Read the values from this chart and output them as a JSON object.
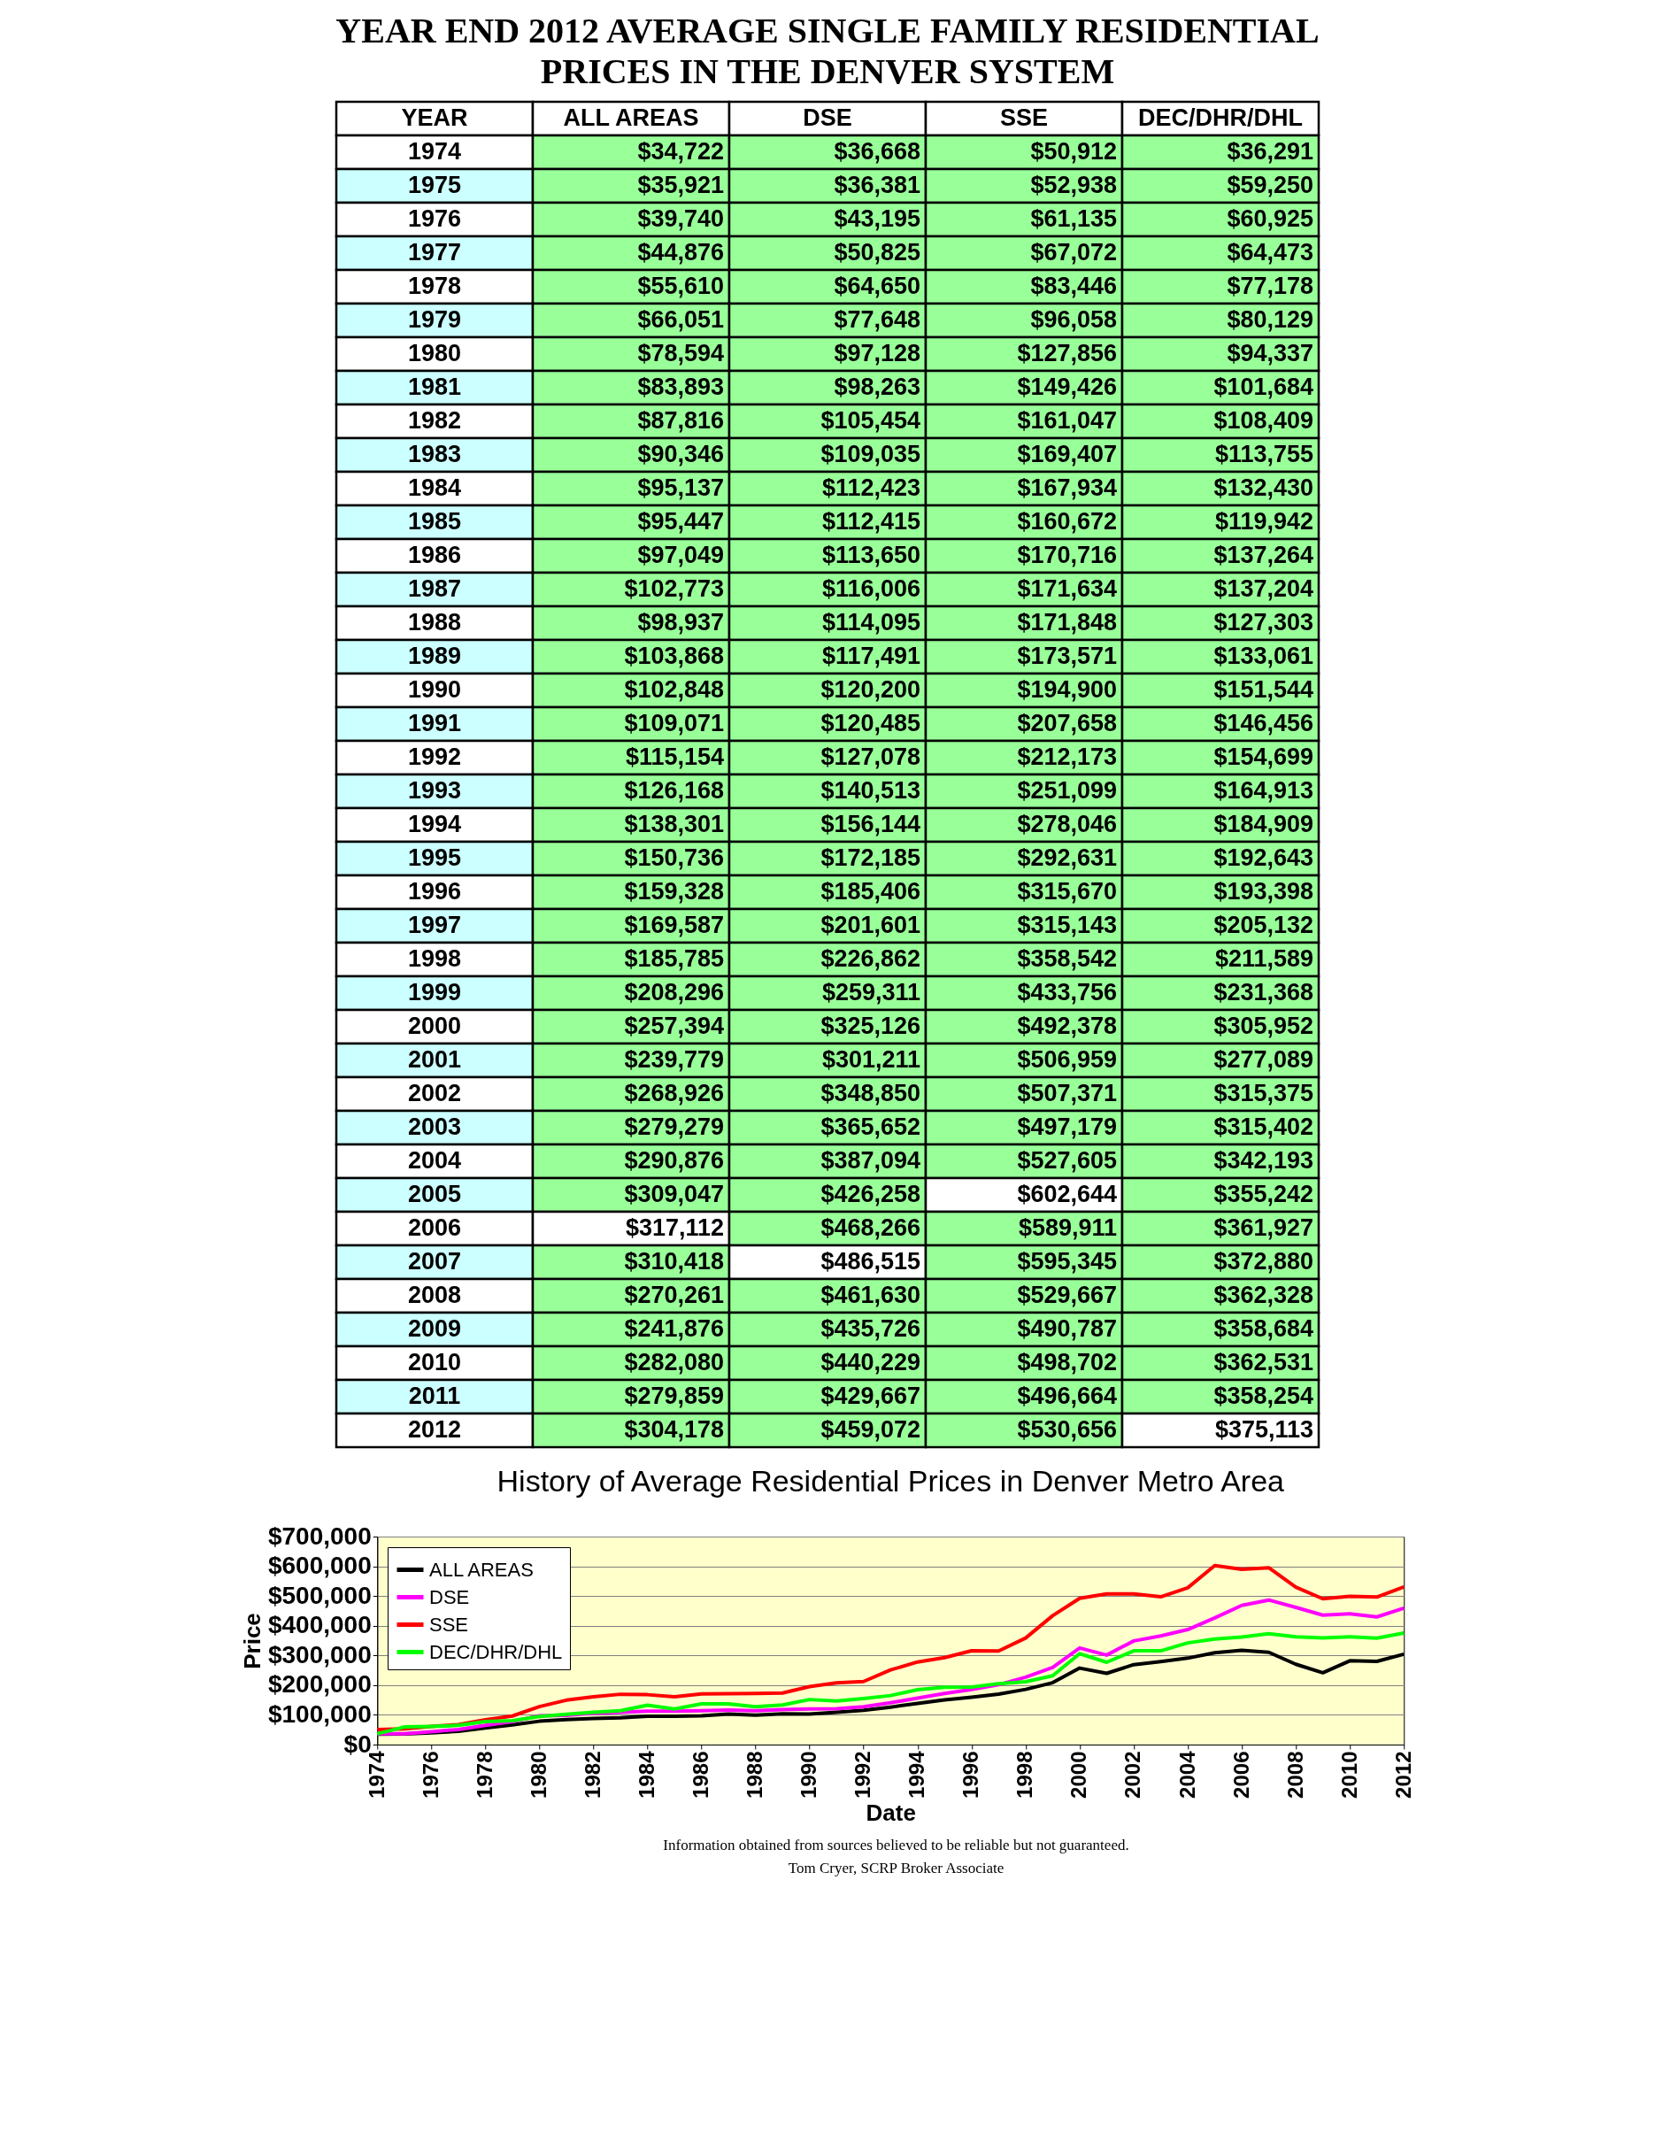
{
  "chart_data": [
    {
      "type": "heatmap",
      "title": "YEAR END 2012 AVERAGE SINGLE FAMILY RESIDENTIAL PRICES IN THE DENVER SYSTEM",
      "ylabel": "YEAR",
      "categories": [
        "ALL AREAS",
        "DSE",
        "SSE",
        "DEC/DHR/DHL"
      ],
      "y_categories": [
        "1974",
        "1975",
        "1976",
        "1977",
        "1978",
        "1979",
        "1980",
        "1981",
        "1982",
        "1983",
        "1984",
        "1985",
        "1986",
        "1987",
        "1988",
        "1989",
        "1990",
        "1991",
        "1992",
        "1993",
        "1994",
        "1995",
        "1996",
        "1997",
        "1998",
        "1999",
        "2000",
        "2001",
        "2002",
        "2003",
        "2004",
        "2005",
        "2006",
        "2007",
        "2008",
        "2009",
        "2010",
        "2011",
        "2012"
      ],
      "cells": [
        [
          34722,
          36668,
          50912,
          36291
        ],
        [
          35921,
          36381,
          52938,
          59250
        ],
        [
          39740,
          43195,
          61135,
          60925
        ],
        [
          44876,
          50825,
          67072,
          64473
        ],
        [
          55610,
          64650,
          83446,
          77178
        ],
        [
          66051,
          77648,
          96058,
          80129
        ],
        [
          78594,
          97128,
          127856,
          94337
        ],
        [
          83893,
          98263,
          149426,
          101684
        ],
        [
          87816,
          105454,
          161047,
          108409
        ],
        [
          90346,
          109035,
          169407,
          113755
        ],
        [
          95137,
          112423,
          167934,
          132430
        ],
        [
          95447,
          112415,
          160672,
          119942
        ],
        [
          97049,
          113650,
          170716,
          137264
        ],
        [
          102773,
          116006,
          171634,
          137204
        ],
        [
          98937,
          114095,
          171848,
          127303
        ],
        [
          103868,
          117491,
          173571,
          133061
        ],
        [
          102848,
          120200,
          194900,
          151544
        ],
        [
          109071,
          120485,
          207658,
          146456
        ],
        [
          115154,
          127078,
          212173,
          154699
        ],
        [
          126168,
          140513,
          251099,
          164913
        ],
        [
          138301,
          156144,
          278046,
          184909
        ],
        [
          150736,
          172185,
          292631,
          192643
        ],
        [
          159328,
          185406,
          315670,
          193398
        ],
        [
          169587,
          201601,
          315143,
          205132
        ],
        [
          185785,
          226862,
          358542,
          211589
        ],
        [
          208296,
          259311,
          433756,
          231368
        ],
        [
          257394,
          325126,
          492378,
          305952
        ],
        [
          239779,
          301211,
          506959,
          277089
        ],
        [
          268926,
          348850,
          507371,
          315375
        ],
        [
          279279,
          365652,
          497179,
          315402
        ],
        [
          290876,
          387094,
          527605,
          342193
        ],
        [
          309047,
          426258,
          602644,
          355242
        ],
        [
          317112,
          468266,
          589911,
          361927
        ],
        [
          310418,
          486515,
          595345,
          372880
        ],
        [
          270261,
          461630,
          529667,
          362328
        ],
        [
          241876,
          435726,
          490787,
          358684
        ],
        [
          282080,
          440229,
          498702,
          362531
        ],
        [
          279859,
          429667,
          496664,
          358254
        ],
        [
          304178,
          459072,
          530656,
          375113
        ]
      ],
      "cell_labels": [
        [
          "$34,722",
          "$36,668",
          "$50,912",
          "$36,291"
        ],
        [
          "$35,921",
          "$36,381",
          "$52,938",
          "$59,250"
        ],
        [
          "$39,740",
          "$43,195",
          "$61,135",
          "$60,925"
        ],
        [
          "$44,876",
          "$50,825",
          "$67,072",
          "$64,473"
        ],
        [
          "$55,610",
          "$64,650",
          "$83,446",
          "$77,178"
        ],
        [
          "$66,051",
          "$77,648",
          "$96,058",
          "$80,129"
        ],
        [
          "$78,594",
          "$97,128",
          "$127,856",
          "$94,337"
        ],
        [
          "$83,893",
          "$98,263",
          "$149,426",
          "$101,684"
        ],
        [
          "$87,816",
          "$105,454",
          "$161,047",
          "$108,409"
        ],
        [
          "$90,346",
          "$109,035",
          "$169,407",
          "$113,755"
        ],
        [
          "$95,137",
          "$112,423",
          "$167,934",
          "$132,430"
        ],
        [
          "$95,447",
          "$112,415",
          "$160,672",
          "$119,942"
        ],
        [
          "$97,049",
          "$113,650",
          "$170,716",
          "$137,264"
        ],
        [
          "$102,773",
          "$116,006",
          "$171,634",
          "$137,204"
        ],
        [
          "$98,937",
          "$114,095",
          "$171,848",
          "$127,303"
        ],
        [
          "$103,868",
          "$117,491",
          "$173,571",
          "$133,061"
        ],
        [
          "$102,848",
          "$120,200",
          "$194,900",
          "$151,544"
        ],
        [
          "$109,071",
          "$120,485",
          "$207,658",
          "$146,456"
        ],
        [
          "$115,154",
          "$127,078",
          "$212,173",
          "$154,699"
        ],
        [
          "$126,168",
          "$140,513",
          "$251,099",
          "$164,913"
        ],
        [
          "$138,301",
          "$156,144",
          "$278,046",
          "$184,909"
        ],
        [
          "$150,736",
          "$172,185",
          "$292,631",
          "$192,643"
        ],
        [
          "$159,328",
          "$185,406",
          "$315,670",
          "$193,398"
        ],
        [
          "$169,587",
          "$201,601",
          "$315,143",
          "$205,132"
        ],
        [
          "$185,785",
          "$226,862",
          "$358,542",
          "$211,589"
        ],
        [
          "$208,296",
          "$259,311",
          "$433,756",
          "$231,368"
        ],
        [
          "$257,394",
          "$325,126",
          "$492,378",
          "$305,952"
        ],
        [
          "$239,779",
          "$301,211",
          "$506,959",
          "$277,089"
        ],
        [
          "$268,926",
          "$348,850",
          "$507,371",
          "$315,375"
        ],
        [
          "$279,279",
          "$365,652",
          "$497,179",
          "$315,402"
        ],
        [
          "$290,876",
          "$387,094",
          "$527,605",
          "$342,193"
        ],
        [
          "$309,047",
          "$426,258",
          "$602,644",
          "$355,242"
        ],
        [
          "$317,112",
          "$468,266",
          "$589,911",
          "$361,927"
        ],
        [
          "$310,418",
          "$486,515",
          "$595,345",
          "$372,880"
        ],
        [
          "$270,261",
          "$461,630",
          "$529,667",
          "$362,328"
        ],
        [
          "$241,876",
          "$435,726",
          "$490,787",
          "$358,684"
        ],
        [
          "$282,080",
          "$440,229",
          "$498,702",
          "$362,531"
        ],
        [
          "$279,859",
          "$429,667",
          "$496,664",
          "$358,254"
        ],
        [
          "$304,178",
          "$459,072",
          "$530,656",
          "$375,113"
        ]
      ]
    },
    {
      "type": "line",
      "title": "History of Average Residential Prices in Denver Metro Area",
      "xlabel": "Date",
      "ylabel": "Price",
      "annotations": [
        "Information obtained from sources believed to be reliable but not guaranteed.",
        "Tom Cryer, SCRP Broker Associate"
      ],
      "x": [
        1974,
        1975,
        1976,
        1977,
        1978,
        1979,
        1980,
        1981,
        1982,
        1983,
        1984,
        1985,
        1986,
        1987,
        1988,
        1989,
        1990,
        1991,
        1992,
        1993,
        1994,
        1995,
        1996,
        1997,
        1998,
        1999,
        2000,
        2001,
        2002,
        2003,
        2004,
        2005,
        2006,
        2007,
        2008,
        2009,
        2010,
        2011,
        2012
      ],
      "series": [
        {
          "name": "ALL AREAS",
          "color": "#000000",
          "values": [
            34722,
            35921,
            39740,
            44876,
            55610,
            66051,
            78594,
            83893,
            87816,
            90346,
            95137,
            95447,
            97049,
            102773,
            98937,
            103868,
            102848,
            109071,
            115154,
            126168,
            138301,
            150736,
            159328,
            169587,
            185785,
            208296,
            257394,
            239779,
            268926,
            279279,
            290876,
            309047,
            317112,
            310418,
            270261,
            241876,
            282080,
            279859,
            304178
          ]
        },
        {
          "name": "DSE",
          "color": "#ff00ff",
          "values": [
            36668,
            36381,
            43195,
            50825,
            64650,
            77648,
            97128,
            98263,
            105454,
            109035,
            112423,
            112415,
            113650,
            116006,
            114095,
            117491,
            120200,
            120485,
            127078,
            140513,
            156144,
            172185,
            185406,
            201601,
            226862,
            259311,
            325126,
            301211,
            348850,
            365652,
            387094,
            426258,
            468266,
            486515,
            461630,
            435726,
            440229,
            429667,
            459072
          ]
        },
        {
          "name": "SSE",
          "color": "#ff0000",
          "values": [
            50912,
            52938,
            61135,
            67072,
            83446,
            96058,
            127856,
            149426,
            161047,
            169407,
            167934,
            160672,
            170716,
            171634,
            171848,
            173571,
            194900,
            207658,
            212173,
            251099,
            278046,
            292631,
            315670,
            315143,
            358542,
            433756,
            492378,
            506959,
            507371,
            497179,
            527605,
            602644,
            589911,
            595345,
            529667,
            490787,
            498702,
            496664,
            530656
          ]
        },
        {
          "name": "DEC/DHR/DHL",
          "color": "#00ff00",
          "values": [
            36291,
            59250,
            60925,
            64473,
            77178,
            80129,
            94337,
            101684,
            108409,
            113755,
            132430,
            119942,
            137264,
            137204,
            127303,
            133061,
            151544,
            146456,
            154699,
            164913,
            184909,
            192643,
            193398,
            205132,
            211589,
            231368,
            305952,
            277089,
            315375,
            315402,
            342193,
            355242,
            361927,
            372880,
            362328,
            358684,
            362531,
            358254,
            375113
          ]
        }
      ],
      "xlim": [
        1974,
        2012
      ],
      "xticks": [
        1974,
        1976,
        1978,
        1980,
        1982,
        1984,
        1986,
        1988,
        1990,
        1992,
        1994,
        1996,
        1998,
        2000,
        2002,
        2004,
        2006,
        2008,
        2010,
        2012
      ],
      "ylim": [
        0,
        700000
      ],
      "yticks": [
        {
          "value": 0,
          "label": "$0"
        },
        {
          "value": 100000,
          "label": "$100,000"
        },
        {
          "value": 200000,
          "label": "$200,000"
        },
        {
          "value": 300000,
          "label": "$300,000"
        },
        {
          "value": 400000,
          "label": "$400,000"
        },
        {
          "value": 500000,
          "label": "$500,000"
        },
        {
          "value": 600000,
          "label": "$600,000"
        },
        {
          "value": 700000,
          "label": "$700,000"
        }
      ],
      "grid": "y",
      "legend": "top left"
    }
  ]
}
